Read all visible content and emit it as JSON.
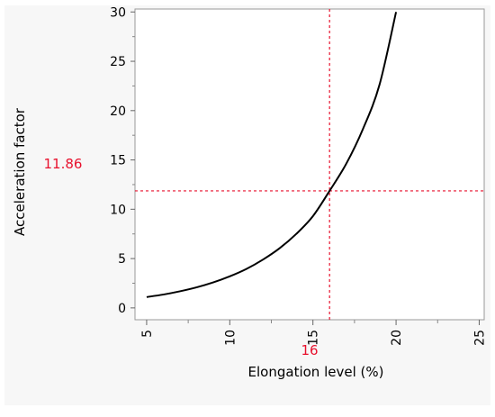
{
  "chart_data": {
    "type": "line",
    "title": "",
    "xlabel": "Elongation level (%)",
    "ylabel": "Acceleration factor",
    "xlim": [
      4.3,
      25.3
    ],
    "ylim": [
      -1.2,
      30.3
    ],
    "xticks": [
      5,
      10,
      15,
      20,
      25
    ],
    "yticks": [
      0,
      5,
      10,
      15,
      20,
      25,
      30
    ],
    "series": [
      {
        "x": [
          5,
          6,
          7,
          8,
          9,
          10,
          11,
          12,
          13,
          14,
          15,
          16,
          17,
          18,
          19,
          20
        ],
        "y": [
          1.1,
          1.35,
          1.68,
          2.08,
          2.58,
          3.2,
          3.95,
          4.9,
          6.05,
          7.5,
          9.3,
          11.86,
          14.6,
          18.1,
          22.6,
          30.0
        ],
        "color": "#000000"
      }
    ],
    "reference": {
      "x": 16,
      "y": 11.86,
      "x_label": "16",
      "y_label": "11.86",
      "color": "#e8112d"
    }
  }
}
